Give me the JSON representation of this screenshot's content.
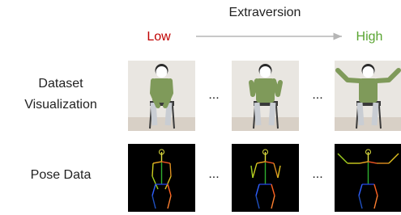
{
  "header": {
    "title": "Extraversion",
    "low": "Low",
    "high": "High"
  },
  "rows": [
    {
      "label_lines": [
        "Dataset",
        "Visualization"
      ]
    },
    {
      "label_lines": [
        "Pose Data"
      ]
    }
  ],
  "ellipsis": "..."
}
